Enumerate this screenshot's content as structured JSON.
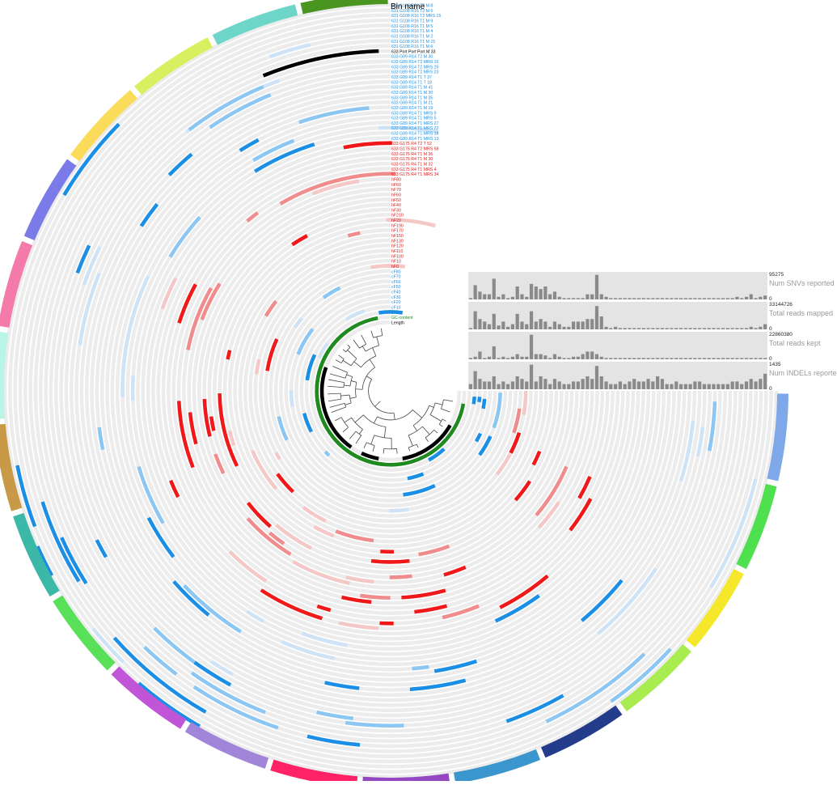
{
  "title": "Bin name",
  "layer_labels": [
    {
      "text": "631 G108 R16 T2 M 8",
      "group": "blue"
    },
    {
      "text": "631 G108 R16 T2 M 6",
      "group": "blue"
    },
    {
      "text": "631 G108 R16 T2 MRS 15",
      "group": "blue"
    },
    {
      "text": "631 G108 R16 T1 M 9",
      "group": "blue"
    },
    {
      "text": "631 G108 R16 T1 M 5",
      "group": "blue"
    },
    {
      "text": "631 G108 R16 T1 M 4",
      "group": "blue"
    },
    {
      "text": "631 G108 R16 T1 M 2",
      "group": "blue"
    },
    {
      "text": "631 G108 R16 T1 M 15",
      "group": "blue"
    },
    {
      "text": "631 G108 R16 T1 M 6",
      "group": "blue"
    },
    {
      "text": "633 Port Port Port M 33",
      "group": "black"
    },
    {
      "text": "633 G89 R14 T2 M 30",
      "group": "blue"
    },
    {
      "text": "633 G89 R14 T2 MRS 16",
      "group": "blue"
    },
    {
      "text": "633 G89 R14 T2 MRS 25",
      "group": "blue"
    },
    {
      "text": "633 G89 R14 T2 MRS 23",
      "group": "blue"
    },
    {
      "text": "633 G89 R14 T1 T 37",
      "group": "blue"
    },
    {
      "text": "633 G89 R14 T1 T 18",
      "group": "blue"
    },
    {
      "text": "633 G89 R14 T1 M 41",
      "group": "blue"
    },
    {
      "text": "633 G89 R14 T1 M 30",
      "group": "blue"
    },
    {
      "text": "633 G89 R14 T1 M 35",
      "group": "blue"
    },
    {
      "text": "633 G89 R14 T1 M 21",
      "group": "blue"
    },
    {
      "text": "633 G89 R14 T1 M 19",
      "group": "blue"
    },
    {
      "text": "633 G89 R14 T1 MRS 9",
      "group": "blue"
    },
    {
      "text": "633 G89 R14 T1 MRS 5",
      "group": "blue"
    },
    {
      "text": "633 G89 R14 T1 MRS 27",
      "group": "blue"
    },
    {
      "text": "633 G89 R14 T1 MRS 22",
      "group": "blue"
    },
    {
      "text": "633 G89 R14 T1 MRS 18",
      "group": "blue"
    },
    {
      "text": "633 G89 R14 T1 MRS 13",
      "group": "blue"
    },
    {
      "text": "633 G175 R4 T2 T 52",
      "group": "red"
    },
    {
      "text": "633 G175 R4 T2 MRS 58",
      "group": "red"
    },
    {
      "text": "633 G175 R4 T1 M 36",
      "group": "red"
    },
    {
      "text": "633 G175 R4 T1 M 30",
      "group": "red"
    },
    {
      "text": "633 G175 R4 T1 M 32",
      "group": "red"
    },
    {
      "text": "633 G175 R4 T1 MRS 4",
      "group": "red"
    },
    {
      "text": "633 G175 R4 T1 MRS 34",
      "group": "red"
    },
    {
      "text": "hF80",
      "group": "red"
    },
    {
      "text": "hF60",
      "group": "red"
    },
    {
      "text": "hF70",
      "group": "red"
    },
    {
      "text": "hF60",
      "group": "red"
    },
    {
      "text": "hF50",
      "group": "red"
    },
    {
      "text": "hF40",
      "group": "red"
    },
    {
      "text": "hF30",
      "group": "red"
    },
    {
      "text": "hF210",
      "group": "red"
    },
    {
      "text": "hF20",
      "group": "red"
    },
    {
      "text": "hF190",
      "group": "red"
    },
    {
      "text": "hF170",
      "group": "red"
    },
    {
      "text": "hF150",
      "group": "red"
    },
    {
      "text": "hF130",
      "group": "red"
    },
    {
      "text": "hF120",
      "group": "red"
    },
    {
      "text": "hF110",
      "group": "red"
    },
    {
      "text": "hF100",
      "group": "red"
    },
    {
      "text": "hF10",
      "group": "red"
    },
    {
      "text": "hF0",
      "group": "red"
    },
    {
      "text": "cF80",
      "group": "blue"
    },
    {
      "text": "cF70",
      "group": "blue"
    },
    {
      "text": "cF60",
      "group": "blue"
    },
    {
      "text": "cF50",
      "group": "blue"
    },
    {
      "text": "cF40",
      "group": "blue"
    },
    {
      "text": "cF30",
      "group": "blue"
    },
    {
      "text": "cF20",
      "group": "blue"
    },
    {
      "text": "cF10",
      "group": "blue"
    },
    {
      "text": "cF0",
      "group": "blue"
    },
    {
      "text": "GC-content",
      "group": "green"
    },
    {
      "text": "Length",
      "group": "black"
    }
  ],
  "bar_panels": [
    {
      "name": "Num SNVs reported",
      "max": "95275",
      "min": "0",
      "values": [
        0.05,
        0.55,
        0.3,
        0.2,
        0.2,
        0.8,
        0.1,
        0.2,
        0.05,
        0.1,
        0.5,
        0.2,
        0.1,
        0.6,
        0.5,
        0.4,
        0.5,
        0.2,
        0.3,
        0.1,
        0.05,
        0.05,
        0.05,
        0.05,
        0.05,
        0.2,
        0.2,
        0.95,
        0.2,
        0.1,
        0.05,
        0.05,
        0.05,
        0.05,
        0.05,
        0.05,
        0.05,
        0.05,
        0.05,
        0.05,
        0.05,
        0.05,
        0.05,
        0.05,
        0.05,
        0.05,
        0.05,
        0.05,
        0.05,
        0.05,
        0.05,
        0.05,
        0.05,
        0.05,
        0.05,
        0.05,
        0.05,
        0.1,
        0.05,
        0.1,
        0.2,
        0.05,
        0.1,
        0.15
      ]
    },
    {
      "name": "Total reads mapped",
      "max": "33144726",
      "min": "0",
      "values": [
        0.05,
        0.7,
        0.4,
        0.3,
        0.2,
        0.6,
        0.15,
        0.3,
        0.1,
        0.2,
        0.6,
        0.3,
        0.2,
        0.7,
        0.3,
        0.4,
        0.3,
        0.1,
        0.3,
        0.2,
        0.1,
        0.1,
        0.3,
        0.3,
        0.3,
        0.4,
        0.4,
        0.9,
        0.5,
        0.1,
        0.05,
        0.1,
        0.05,
        0.05,
        0.05,
        0.05,
        0.05,
        0.05,
        0.05,
        0.05,
        0.05,
        0.05,
        0.05,
        0.05,
        0.05,
        0.05,
        0.05,
        0.05,
        0.05,
        0.05,
        0.05,
        0.05,
        0.05,
        0.05,
        0.05,
        0.05,
        0.05,
        0.05,
        0.05,
        0.05,
        0.1,
        0.05,
        0.1,
        0.2
      ]
    },
    {
      "name": "Total reads kept",
      "max": "22860380",
      "min": "0",
      "values": [
        0.05,
        0.1,
        0.3,
        0.05,
        0.1,
        0.5,
        0.05,
        0.1,
        0.05,
        0.1,
        0.2,
        0.1,
        0.1,
        0.95,
        0.2,
        0.2,
        0.15,
        0.05,
        0.2,
        0.1,
        0.05,
        0.05,
        0.1,
        0.1,
        0.2,
        0.3,
        0.3,
        0.2,
        0.1,
        0.05,
        0.05,
        0.05,
        0.05,
        0.05,
        0.05,
        0.05,
        0.05,
        0.05,
        0.05,
        0.05,
        0.05,
        0.05,
        0.05,
        0.05,
        0.05,
        0.05,
        0.05,
        0.05,
        0.05,
        0.05,
        0.05,
        0.05,
        0.05,
        0.05,
        0.05,
        0.05,
        0.05,
        0.05,
        0.05,
        0.05,
        0.05,
        0.05,
        0.05,
        0.05
      ]
    },
    {
      "name": "Num INDELs reported",
      "max": "1435",
      "min": "0",
      "values": [
        0.2,
        0.7,
        0.4,
        0.3,
        0.3,
        0.5,
        0.2,
        0.3,
        0.2,
        0.3,
        0.5,
        0.4,
        0.3,
        0.95,
        0.3,
        0.5,
        0.4,
        0.2,
        0.4,
        0.3,
        0.2,
        0.2,
        0.3,
        0.3,
        0.4,
        0.5,
        0.4,
        0.9,
        0.5,
        0.3,
        0.2,
        0.2,
        0.3,
        0.2,
        0.3,
        0.4,
        0.3,
        0.3,
        0.4,
        0.3,
        0.5,
        0.4,
        0.2,
        0.2,
        0.3,
        0.2,
        0.2,
        0.2,
        0.3,
        0.3,
        0.2,
        0.2,
        0.2,
        0.2,
        0.2,
        0.2,
        0.3,
        0.3,
        0.2,
        0.3,
        0.4,
        0.3,
        0.4,
        0.6
      ]
    }
  ],
  "outer_ring_colors": [
    "#7fa8e8",
    "#4fe04f",
    "#f5e82a",
    "#a8ec50",
    "#243c8c",
    "#3a96cc",
    "#9447c0",
    "#ff2266",
    "#a085d8",
    "#c055d8",
    "#58e058",
    "#3bb8a8",
    "#c89a48",
    "#b8f5e6",
    "#f47aaa",
    "#7a7ae8",
    "#fbdc5a",
    "#d8f060",
    "#6ed6c8",
    "#4a9420"
  ],
  "palette": {
    "blue": "#1b8fe6",
    "blue_light": "#8cc6f2",
    "blue_pale": "#cfe3f6",
    "red": "#f01818",
    "red_light": "#f08c8c",
    "red_pale": "#f5c8c8",
    "ring_bg": "#ececec",
    "green": "#1f8a1f",
    "bar": "#8a8a8a"
  }
}
